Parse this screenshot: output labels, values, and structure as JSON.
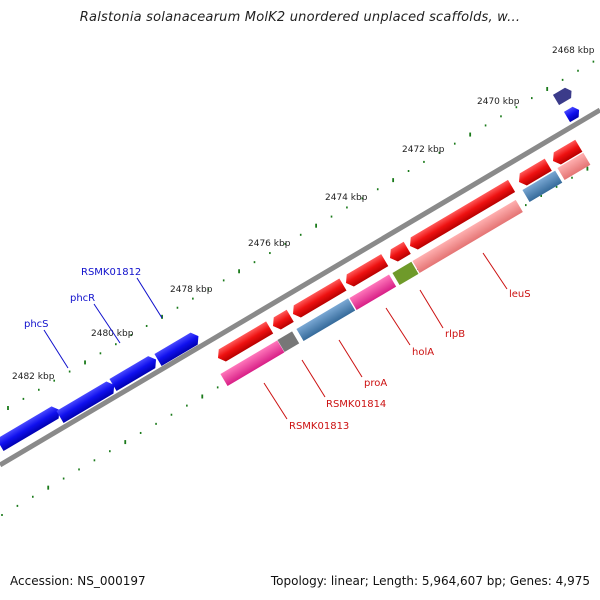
{
  "title": "Ralstonia solanacearum MolK2 unordered unplaced scaffolds, w...",
  "footer": {
    "accession": "Accession: NS_000197",
    "summary": "Topology: linear; Length: 5,964,607 bp; Genes: 4,975"
  },
  "colors": {
    "axis": "#8a8a8a",
    "ticks": "#1a7a1a",
    "forward_gene": "#1010ee",
    "reverse_gene": "#ee1111",
    "reverse_label": "#cc1111",
    "forward_label": "#1010cc",
    "pink": "#ee3399",
    "steel": "#4a7fb0",
    "olive": "#6f9a2a",
    "grey": "#777777",
    "light_red": "#f08a8a",
    "purple": "#3b3b8a"
  },
  "kbp_labels": [
    "2468 kbp",
    "2470 kbp",
    "2472 kbp",
    "2474 kbp",
    "2476 kbp",
    "2478 kbp",
    "2480 kbp",
    "2482 kbp"
  ],
  "forward_labels": [
    "RSMK01812",
    "phcR",
    "phcS"
  ],
  "reverse_labels": [
    "leuS",
    "rlpB",
    "holA",
    "proA",
    "RSMK01814",
    "RSMK01813"
  ]
}
